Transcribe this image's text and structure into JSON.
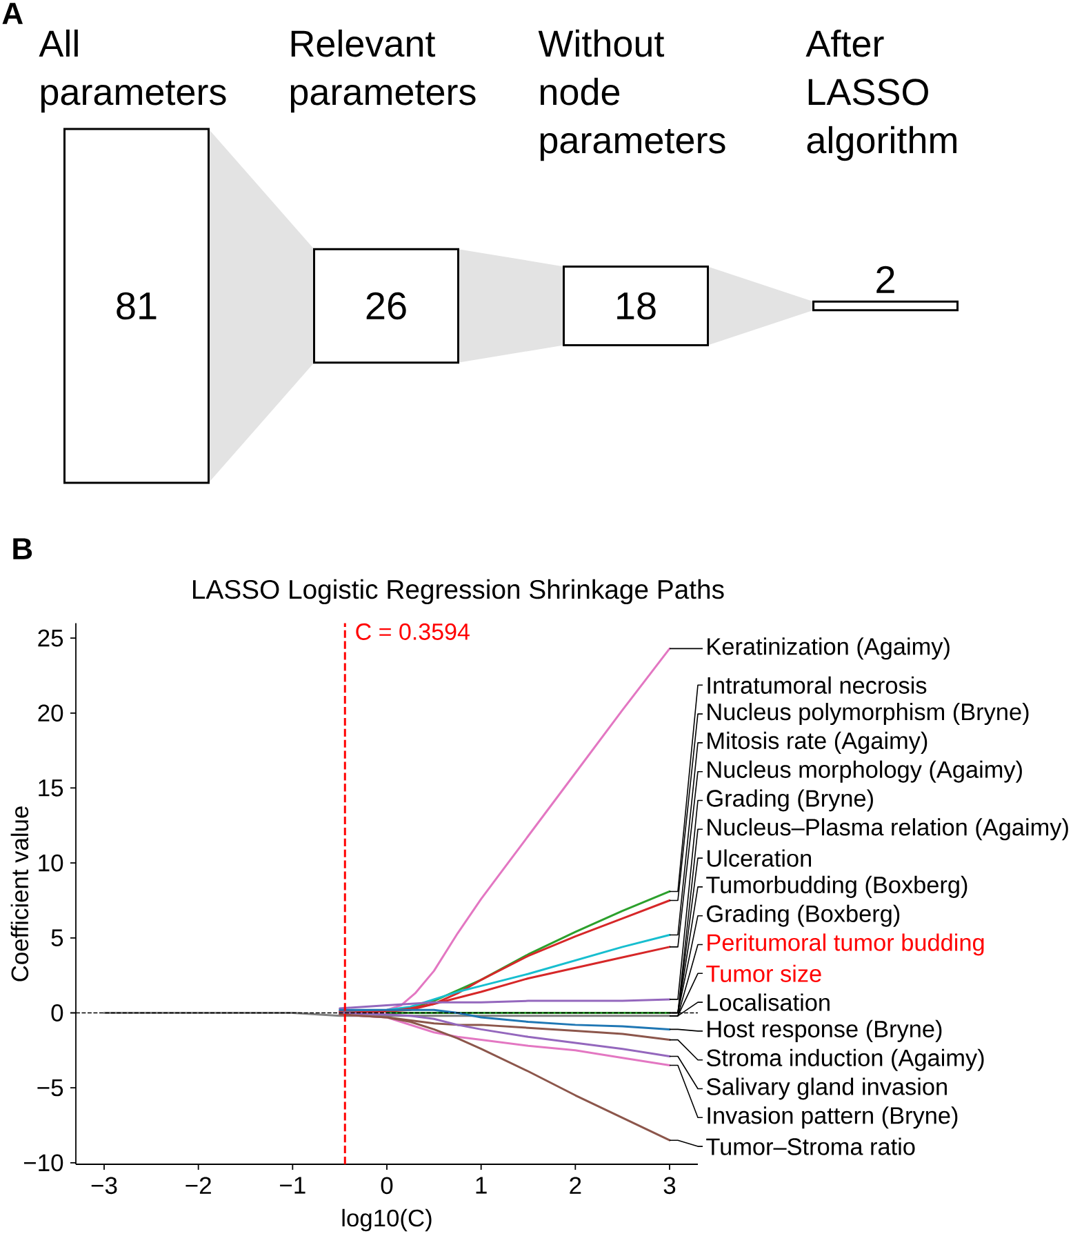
{
  "chart_data": [
    {
      "type": "other",
      "categories": [
        "All parameters",
        "Relevant parameters",
        "Without node parameters",
        "After LASSO algorithm"
      ],
      "values": [
        81,
        26,
        18,
        2
      ],
      "data_labels": true,
      "annotations": [
        "A"
      ]
    },
    {
      "type": "line",
      "title": "LASSO Logistic Regression Shrinkage Paths",
      "xlabel": "log10(C)",
      "ylabel": "Coefficient value",
      "annotations": [
        "B",
        "C = 0.3594"
      ],
      "x": [
        -3,
        -2,
        -1,
        -0.5,
        0,
        0.25,
        0.5,
        0.75,
        1,
        1.5,
        2,
        2.5,
        3
      ],
      "xlim": [
        -3.3,
        3.3
      ],
      "ylim": [
        -10.1,
        26
      ],
      "xticks": [
        {
          "value": -3,
          "label": "−3"
        },
        {
          "value": -2,
          "label": "−2"
        },
        {
          "value": -1,
          "label": "−1"
        },
        0,
        1,
        2,
        3
      ],
      "yticks": [
        {
          "value": -10,
          "label": "−10"
        },
        {
          "value": -5,
          "label": "−5"
        },
        0,
        5,
        10,
        15,
        20,
        25
      ],
      "series": [
        {
          "name": "Keratinization (Agaimy)",
          "color": "#e377c2",
          "x": [
            -0.5,
            0,
            0.15,
            0.3,
            0.5,
            0.75,
            1,
            1.5,
            2,
            2.5,
            3
          ],
          "values": [
            0.1,
            0.2,
            0.5,
            1.3,
            2.8,
            5.3,
            7.6,
            11.8,
            16.0,
            20.2,
            24.3
          ]
        },
        {
          "name": "Intratumoral necrosis",
          "color": "#2ca02c",
          "values": [
            null,
            null,
            null,
            0.0,
            0.1,
            0.3,
            0.8,
            1.5,
            2.2,
            3.9,
            5.4,
            6.8,
            8.1
          ]
        },
        {
          "name": "Nucleus polymorphism (Bryne)",
          "color": "#d62728",
          "values": [
            null,
            null,
            null,
            0.1,
            0.1,
            0.2,
            0.6,
            1.3,
            2.2,
            3.8,
            5.1,
            6.3,
            7.5
          ]
        },
        {
          "name": "Mitosis rate (Agaimy)",
          "color": "#17becf",
          "values": [
            null,
            null,
            null,
            0.0,
            0.2,
            0.4,
            0.9,
            1.4,
            1.8,
            2.6,
            3.5,
            4.4,
            5.2
          ]
        },
        {
          "name": "Nucleus morphology (Agaimy)",
          "color": "#d62728",
          "values": [
            null,
            null,
            null,
            0.0,
            0.1,
            0.3,
            0.6,
            1.0,
            1.4,
            2.3,
            3.0,
            3.7,
            4.4
          ]
        },
        {
          "name": "Grading (Bryne)",
          "color": "#9467bd",
          "values": [
            null,
            null,
            null,
            0.3,
            0.5,
            0.6,
            0.7,
            0.7,
            0.7,
            0.8,
            0.8,
            0.8,
            0.9
          ]
        },
        {
          "name": "Nucleus–Plasma relation (Agaimy)",
          "values": [
            null,
            null,
            null,
            null,
            null,
            null,
            null,
            null,
            null,
            null,
            null,
            null,
            null
          ]
        },
        {
          "name": "Ulceration",
          "color": "#2ca02c",
          "values": [
            null,
            null,
            null,
            null,
            0.0,
            0.0,
            0.0,
            0.0,
            0.0,
            0.0,
            0.0,
            0.0,
            0.0
          ]
        },
        {
          "name": "Tumorbudding (Boxberg)",
          "values": [
            null,
            null,
            null,
            null,
            null,
            null,
            null,
            null,
            null,
            null,
            null,
            null,
            null
          ]
        },
        {
          "name": "Grading (Boxberg)",
          "values": [
            null,
            null,
            null,
            null,
            null,
            null,
            null,
            null,
            null,
            null,
            null,
            null,
            null
          ]
        },
        {
          "name": "Peritumoral tumor budding",
          "color": "#ff0000",
          "values": [
            null,
            null,
            null,
            null,
            null,
            null,
            null,
            null,
            null,
            null,
            null,
            null,
            null
          ]
        },
        {
          "name": "Tumor size",
          "color": "#ff0000",
          "values": [
            null,
            null,
            null,
            null,
            null,
            null,
            null,
            null,
            null,
            null,
            null,
            null,
            null
          ]
        },
        {
          "name": "Localisation",
          "color": "#7f7f7f",
          "values": [
            0.0,
            0.0,
            0.0,
            -0.2,
            -0.2,
            -0.2,
            -0.2,
            -0.2,
            -0.2,
            -0.2,
            -0.2,
            -0.2,
            -0.2
          ]
        },
        {
          "name": "Host response (Bryne)",
          "color": "#1f77b4",
          "values": [
            null,
            null,
            null,
            0.2,
            0.2,
            0.2,
            0.2,
            0.0,
            -0.3,
            -0.6,
            -0.8,
            -0.9,
            -1.1
          ]
        },
        {
          "name": "Stroma induction (Agaimy)",
          "color": "#8c564b",
          "values": [
            null,
            null,
            null,
            -0.1,
            -0.3,
            -0.5,
            -0.7,
            -0.8,
            -0.8,
            -1.0,
            -1.2,
            -1.4,
            -1.8
          ]
        },
        {
          "name": "Salivary gland invasion",
          "color": "#9467bd",
          "values": [
            null,
            null,
            null,
            0.0,
            -0.1,
            -0.2,
            -0.4,
            -0.8,
            -1.1,
            -1.6,
            -2.0,
            -2.4,
            -2.9
          ]
        },
        {
          "name": "Invasion pattern (Bryne)",
          "color": "#e377c2",
          "values": [
            null,
            null,
            null,
            -0.1,
            -0.3,
            -0.8,
            -1.3,
            -1.6,
            -1.8,
            -2.2,
            -2.5,
            -3.0,
            -3.5
          ]
        },
        {
          "name": "Tumor–Stroma ratio",
          "color": "#8c564b",
          "values": [
            null,
            null,
            null,
            -0.1,
            -0.3,
            -0.6,
            -1.1,
            -1.7,
            -2.4,
            -3.9,
            -5.5,
            -7.0,
            -8.5
          ]
        }
      ],
      "ref_lines": [
        {
          "axis": "x",
          "value": -0.4444,
          "color": "#ff0000",
          "line_style": "dashed"
        },
        {
          "axis": "y",
          "value": 0,
          "color": "#000000",
          "line_style": "dashed"
        }
      ]
    }
  ]
}
